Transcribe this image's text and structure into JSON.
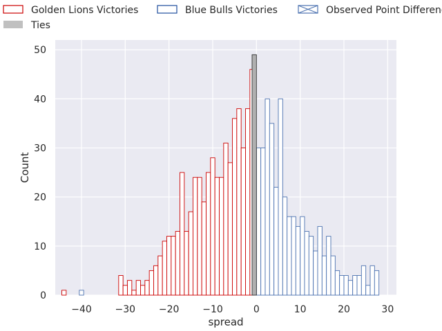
{
  "chart_data": {
    "type": "histogram",
    "xlabel": "spread",
    "ylabel": "Count",
    "xlim": [
      -46,
      32
    ],
    "ylim": [
      0,
      52
    ],
    "x_ticks": [
      -40,
      -30,
      -20,
      -10,
      0,
      10,
      20,
      30
    ],
    "y_ticks": [
      0,
      10,
      20,
      30,
      40,
      50
    ],
    "x_tick_labels": [
      "−40",
      "−30",
      "−20",
      "−10",
      "0",
      "10",
      "20",
      "30"
    ],
    "y_tick_labels": [
      "0",
      "10",
      "20",
      "30",
      "40",
      "50"
    ],
    "grid": true,
    "bin_width": 1,
    "legend": {
      "placement": "top",
      "entries": [
        {
          "label": "Golden Lions Victories",
          "swatch": "outline",
          "color": "#cc0000"
        },
        {
          "label": "Blue Bulls Victories",
          "swatch": "outline",
          "color": "#1f4e9c"
        },
        {
          "label": "Observed Point Difference",
          "swatch": "hatched",
          "color": "#4c72b0"
        },
        {
          "label": "Ties",
          "swatch": "filled",
          "color": "#c0c0c0"
        }
      ]
    },
    "series": [
      {
        "name": "Golden Lions Victories",
        "color": "#cc0000",
        "bins": [
          {
            "x": -44,
            "count": 1
          },
          {
            "x": -31,
            "count": 4
          },
          {
            "x": -30,
            "count": 2
          },
          {
            "x": -29,
            "count": 3
          },
          {
            "x": -28,
            "count": 1
          },
          {
            "x": -27,
            "count": 3
          },
          {
            "x": -26,
            "count": 2
          },
          {
            "x": -25,
            "count": 3
          },
          {
            "x": -24,
            "count": 5
          },
          {
            "x": -23,
            "count": 6
          },
          {
            "x": -22,
            "count": 8
          },
          {
            "x": -21,
            "count": 11
          },
          {
            "x": -20,
            "count": 12
          },
          {
            "x": -19,
            "count": 12
          },
          {
            "x": -18,
            "count": 13
          },
          {
            "x": -17,
            "count": 25
          },
          {
            "x": -16,
            "count": 13
          },
          {
            "x": -15,
            "count": 17
          },
          {
            "x": -14,
            "count": 24
          },
          {
            "x": -13,
            "count": 24
          },
          {
            "x": -12,
            "count": 19
          },
          {
            "x": -11,
            "count": 25
          },
          {
            "x": -10,
            "count": 28
          },
          {
            "x": -9,
            "count": 24
          },
          {
            "x": -8,
            "count": 24
          },
          {
            "x": -7,
            "count": 31
          },
          {
            "x": -6,
            "count": 27
          },
          {
            "x": -5,
            "count": 36
          },
          {
            "x": -4,
            "count": 38
          },
          {
            "x": -3,
            "count": 30
          },
          {
            "x": -2,
            "count": 38
          },
          {
            "x": -1,
            "count": 46
          }
        ]
      },
      {
        "name": "Blue Bulls Victories",
        "color": "#4c72b0",
        "bins": [
          {
            "x": -40,
            "count": 1
          },
          {
            "x": 0.5,
            "count": 30
          },
          {
            "x": 1.5,
            "count": 30
          },
          {
            "x": 2.5,
            "count": 40
          },
          {
            "x": 3.5,
            "count": 35
          },
          {
            "x": 4.5,
            "count": 22
          },
          {
            "x": 5.5,
            "count": 40
          },
          {
            "x": 6.5,
            "count": 20
          },
          {
            "x": 7.5,
            "count": 16
          },
          {
            "x": 8.5,
            "count": 16
          },
          {
            "x": 9.5,
            "count": 14
          },
          {
            "x": 10.5,
            "count": 16
          },
          {
            "x": 11.5,
            "count": 13
          },
          {
            "x": 12.5,
            "count": 12
          },
          {
            "x": 13.5,
            "count": 9
          },
          {
            "x": 14.5,
            "count": 14
          },
          {
            "x": 15.5,
            "count": 8
          },
          {
            "x": 16.5,
            "count": 12
          },
          {
            "x": 17.5,
            "count": 8
          },
          {
            "x": 18.5,
            "count": 5
          },
          {
            "x": 19.5,
            "count": 4
          },
          {
            "x": 20.5,
            "count": 4
          },
          {
            "x": 21.5,
            "count": 3
          },
          {
            "x": 22.5,
            "count": 4
          },
          {
            "x": 23.5,
            "count": 4
          },
          {
            "x": 24.5,
            "count": 6
          },
          {
            "x": 25.5,
            "count": 2
          },
          {
            "x": 26.5,
            "count": 6
          },
          {
            "x": 27.5,
            "count": 5
          }
        ]
      },
      {
        "name": "Ties",
        "color": "#c0c0c0",
        "bins": [
          {
            "x": -0.5,
            "count": 49
          }
        ]
      }
    ]
  }
}
